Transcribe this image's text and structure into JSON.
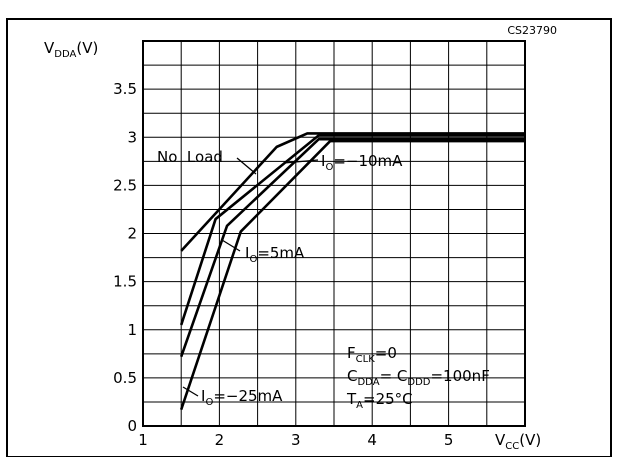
{
  "chart_data": {
    "type": "line",
    "figure_code": "CS23790",
    "xlabel": {
      "main": "V",
      "sub": "CC",
      "unit": "(V)"
    },
    "ylabel": {
      "main": "V",
      "sub": "DDA",
      "unit": "(V)"
    },
    "xlim": [
      1,
      6
    ],
    "ylim": [
      0,
      4
    ],
    "x_ticks": [
      1,
      2,
      3,
      4,
      5
    ],
    "y_ticks": [
      0,
      0.5,
      1,
      1.5,
      2,
      2.5,
      3,
      3.5
    ],
    "grid": true,
    "series": [
      {
        "name": "No Load",
        "x": [
          1.5,
          2.75,
          3.15,
          6.0
        ],
        "y": [
          1.82,
          2.9,
          3.04,
          3.04
        ]
      },
      {
        "name": "IO=-10mA",
        "x": [
          1.5,
          1.95,
          3.3,
          6.0
        ],
        "y": [
          1.05,
          2.15,
          3.02,
          3.02
        ]
      },
      {
        "name": "IO=5mA",
        "x": [
          1.5,
          2.1,
          3.3,
          6.0
        ],
        "y": [
          0.72,
          2.08,
          2.98,
          2.98
        ]
      },
      {
        "name": "IO=-25mA",
        "x": [
          1.5,
          2.28,
          3.45,
          6.0
        ],
        "y": [
          0.17,
          2.02,
          2.96,
          2.96
        ]
      }
    ],
    "annotations": {
      "no_load": "No  Load",
      "io_m10": {
        "main": "I",
        "sub": "O",
        "rest": "=−10mA"
      },
      "io_5": {
        "main": "I",
        "sub": "O",
        "rest": "=5mA"
      },
      "io_m25": {
        "main": "I",
        "sub": "O",
        "rest": "=−25mA"
      }
    },
    "conditions": [
      {
        "parts": [
          {
            "t": "F"
          },
          {
            "t": "CLK",
            "sub": true
          },
          {
            "t": "=0"
          }
        ]
      },
      {
        "parts": [
          {
            "t": "C"
          },
          {
            "t": "DDA",
            "sub": true
          },
          {
            "t": "= C"
          },
          {
            "t": "DDD",
            "sub": true
          },
          {
            "t": "=100nF"
          }
        ]
      },
      {
        "parts": [
          {
            "t": "T"
          },
          {
            "t": "A",
            "sub": true
          },
          {
            "t": "=25°C"
          }
        ]
      }
    ]
  }
}
